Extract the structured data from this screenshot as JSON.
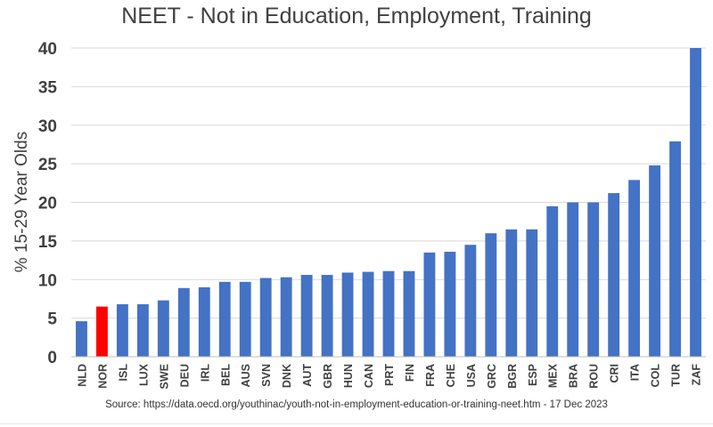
{
  "chart_data": {
    "type": "bar",
    "title": "NEET - Not in Education, Employment, Training",
    "xlabel": "",
    "ylabel": "% 15-29 Year Olds",
    "ylim": [
      0,
      40
    ],
    "yticks": [
      0,
      5,
      10,
      15,
      20,
      25,
      30,
      35,
      40
    ],
    "grid": true,
    "legend": "none",
    "categories": [
      "NLD",
      "NOR",
      "ISL",
      "LUX",
      "SWE",
      "DEU",
      "IRL",
      "BEL",
      "AUS",
      "SVN",
      "DNK",
      "AUT",
      "GBR",
      "HUN",
      "CAN",
      "PRT",
      "FIN",
      "FRA",
      "CHE",
      "USA",
      "GRC",
      "BGR",
      "ESP",
      "MEX",
      "BRA",
      "ROU",
      "CRI",
      "ITA",
      "COL",
      "TUR",
      "ZAF"
    ],
    "values": [
      4.6,
      6.5,
      6.8,
      6.8,
      7.3,
      8.9,
      9.0,
      9.7,
      9.7,
      10.2,
      10.3,
      10.6,
      10.6,
      10.9,
      11.0,
      11.1,
      11.1,
      13.5,
      13.6,
      14.5,
      16.0,
      16.5,
      16.5,
      19.5,
      20.0,
      20.0,
      21.2,
      22.9,
      24.8,
      27.9,
      40.0
    ],
    "highlight": "NOR",
    "colors": {
      "bar": "#4472c4",
      "highlight": "#ff0000",
      "grid": "#d9d9d9",
      "text": "#404040"
    }
  },
  "source": "Source: https://data.oecd.org/youthinac/youth-not-in-employment-education-or-training-neet.htm - 17 Dec 2023"
}
